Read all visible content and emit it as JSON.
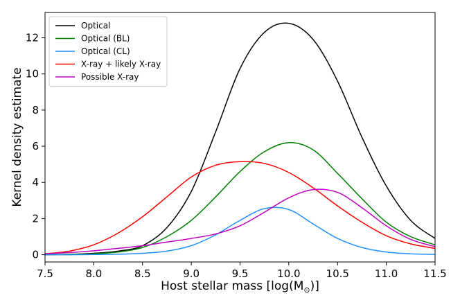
{
  "chart_data": {
    "type": "line",
    "title": "",
    "xlabel": "Host stellar mass [log(M",
    "xlabel_sub": "⊙",
    "xlabel_suffix": ")]",
    "ylabel": "Kernel density estimate",
    "xlim": [
      7.5,
      11.5
    ],
    "ylim": [
      -0.4,
      13.4
    ],
    "xticks": [
      7.5,
      8.0,
      8.5,
      9.0,
      9.5,
      10.0,
      10.5,
      11.0,
      11.5
    ],
    "xtick_labels": [
      "7.5",
      "8.0",
      "8.5",
      "9.0",
      "9.5",
      "10.0",
      "10.5",
      "11.0",
      "11.5"
    ],
    "yticks": [
      0,
      2,
      4,
      6,
      8,
      10,
      12
    ],
    "ytick_labels": [
      "0",
      "2",
      "4",
      "6",
      "8",
      "10",
      "12"
    ],
    "grid": false,
    "legend_position": "top-left",
    "series": [
      {
        "name": "Optical",
        "color": "#000000",
        "x": [
          7.5,
          7.75,
          8.0,
          8.25,
          8.5,
          8.75,
          9.0,
          9.25,
          9.5,
          9.75,
          10.0,
          10.25,
          10.5,
          10.75,
          11.0,
          11.25,
          11.5
        ],
        "y": [
          0.0,
          0.02,
          0.08,
          0.2,
          0.5,
          1.5,
          3.5,
          6.8,
          10.3,
          12.3,
          12.8,
          11.9,
          9.6,
          6.5,
          3.8,
          1.9,
          0.9
        ]
      },
      {
        "name": "Optical (BL)",
        "color": "#008000",
        "x": [
          7.5,
          7.75,
          8.0,
          8.25,
          8.5,
          8.75,
          9.0,
          9.25,
          9.5,
          9.75,
          10.0,
          10.25,
          10.5,
          10.75,
          11.0,
          11.25,
          11.5
        ],
        "y": [
          0.0,
          0.02,
          0.05,
          0.15,
          0.4,
          1.0,
          1.9,
          3.2,
          4.6,
          5.7,
          6.2,
          5.8,
          4.5,
          3.1,
          1.8,
          1.0,
          0.55
        ]
      },
      {
        "name": "Optical (CL)",
        "color": "#1e90ff",
        "x": [
          7.5,
          7.75,
          8.0,
          8.25,
          8.5,
          8.75,
          9.0,
          9.25,
          9.5,
          9.75,
          10.0,
          10.25,
          10.5,
          10.75,
          11.0,
          11.25,
          11.5
        ],
        "y": [
          0.0,
          0.0,
          0.01,
          0.03,
          0.08,
          0.2,
          0.5,
          1.1,
          1.9,
          2.55,
          2.5,
          1.7,
          0.9,
          0.4,
          0.15,
          0.05,
          0.02
        ]
      },
      {
        "name": "X-ray + likely X-ray",
        "color": "#ff0000",
        "x": [
          7.5,
          7.75,
          8.0,
          8.25,
          8.5,
          8.75,
          9.0,
          9.25,
          9.5,
          9.75,
          10.0,
          10.25,
          10.5,
          10.75,
          11.0,
          11.25,
          11.5
        ],
        "y": [
          0.05,
          0.2,
          0.55,
          1.2,
          2.1,
          3.2,
          4.3,
          4.95,
          5.15,
          5.05,
          4.55,
          3.7,
          2.7,
          1.8,
          1.05,
          0.6,
          0.35
        ]
      },
      {
        "name": "Possible X-ray",
        "color": "#bf00bf",
        "x": [
          7.5,
          7.75,
          8.0,
          8.25,
          8.5,
          8.75,
          9.0,
          9.25,
          9.5,
          9.75,
          10.0,
          10.25,
          10.5,
          10.75,
          11.0,
          11.25,
          11.5
        ],
        "y": [
          0.05,
          0.12,
          0.22,
          0.35,
          0.5,
          0.7,
          0.9,
          1.15,
          1.6,
          2.35,
          3.15,
          3.6,
          3.45,
          2.6,
          1.6,
          0.85,
          0.45
        ]
      }
    ]
  }
}
